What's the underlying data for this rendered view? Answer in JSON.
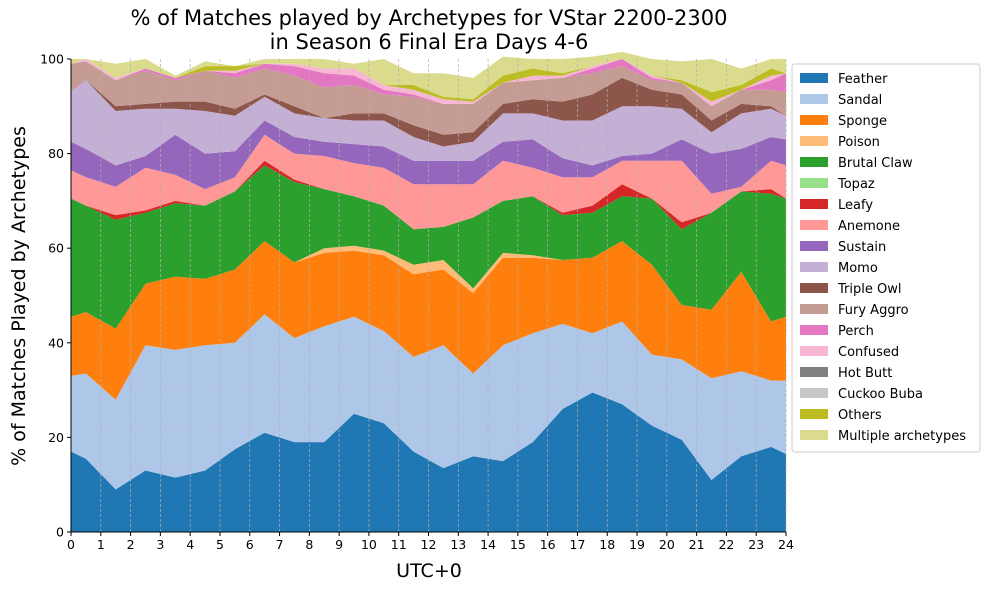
{
  "chart_data": {
    "type": "area",
    "stacked": true,
    "title": "% of Matches played by Archetypes for VStar 2200-2300\nin Season 6 Final Era Days 4-6",
    "xlabel": "UTC+0",
    "ylabel": "% of Matches Played by Archetypes",
    "xlim": [
      0,
      24
    ],
    "ylim": [
      0,
      100
    ],
    "x_ticks": [
      0,
      1,
      2,
      3,
      4,
      5,
      6,
      7,
      8,
      9,
      10,
      11,
      12,
      13,
      14,
      15,
      16,
      17,
      18,
      19,
      20,
      21,
      22,
      23,
      24
    ],
    "y_ticks": [
      0,
      20,
      40,
      60,
      80,
      100
    ],
    "grid": "vertical dashed",
    "legend_position": "outside right",
    "x": [
      0,
      0.5,
      1.5,
      2.5,
      3.5,
      4.5,
      5.5,
      6.5,
      7.5,
      8.5,
      9.5,
      10.5,
      11.5,
      12.5,
      13.5,
      14.5,
      15.5,
      16.5,
      17.5,
      18.5,
      19.5,
      20.5,
      21.5,
      22.5,
      23.5,
      24
    ],
    "series": [
      {
        "name": "Feather",
        "color": "#1f77b4",
        "values": [
          17,
          15.5,
          9,
          13,
          11.5,
          13,
          17.5,
          21,
          19,
          19,
          25,
          23,
          17,
          13.5,
          16,
          15,
          19,
          26,
          29.5,
          27,
          22.5,
          19.5,
          11,
          16,
          18,
          16.5
        ]
      },
      {
        "name": "Sandal",
        "color": "#aec7e8",
        "values": [
          16,
          18,
          19,
          26.5,
          27,
          26.5,
          22.5,
          25,
          22,
          24.5,
          20.5,
          19.5,
          20,
          26,
          17.5,
          24.5,
          23,
          18,
          12.5,
          17.5,
          15,
          17,
          21.5,
          18,
          14,
          15.5
        ]
      },
      {
        "name": "Sponge",
        "color": "#ff7f0e",
        "values": [
          12.5,
          13,
          15,
          13,
          15.5,
          14,
          15.5,
          15.5,
          16,
          15.5,
          14,
          16,
          17.5,
          16,
          17,
          18.5,
          16,
          13.5,
          16,
          17,
          19,
          11.5,
          14.5,
          21,
          12.5,
          13.5
        ]
      },
      {
        "name": "Poison",
        "color": "#ffbb78",
        "values": [
          0,
          0,
          0,
          0,
          0,
          0,
          0,
          0,
          0,
          1,
          1,
          1,
          2,
          2,
          1,
          1,
          0.5,
          0,
          0,
          0,
          0,
          0,
          0,
          0,
          0,
          0
        ]
      },
      {
        "name": "Brutal Claw",
        "color": "#2ca02c",
        "values": [
          25,
          22.5,
          23,
          15,
          15.5,
          15.5,
          16.5,
          16,
          17,
          12.5,
          10.5,
          9.5,
          7.5,
          7,
          15,
          11,
          12.5,
          9.5,
          9.5,
          9.5,
          14,
          16,
          20.5,
          17,
          27,
          25
        ]
      },
      {
        "name": "Topaz",
        "color": "#98df8a",
        "values": [
          0,
          0,
          0,
          0,
          0,
          0,
          0,
          0,
          0,
          0,
          0,
          0,
          0,
          0,
          0,
          0,
          0,
          0,
          0,
          0,
          0,
          0,
          0,
          0,
          0,
          0
        ]
      },
      {
        "name": "Leafy",
        "color": "#d62728",
        "values": [
          0,
          0,
          1,
          0.5,
          0.5,
          0,
          0,
          1,
          0.5,
          0,
          0,
          0,
          0,
          0,
          0,
          0,
          0,
          0.5,
          1.5,
          2.5,
          0,
          1.5,
          0,
          0,
          1,
          0
        ]
      },
      {
        "name": "Anemone",
        "color": "#ff9896",
        "values": [
          6,
          6,
          6,
          9,
          5.5,
          3.5,
          3,
          5.5,
          5.5,
          7,
          7,
          8,
          9.5,
          9,
          7,
          8.5,
          6,
          7.5,
          6,
          5,
          8,
          13,
          4,
          1,
          6,
          7
        ]
      },
      {
        "name": "Sustain",
        "color": "#9467bd",
        "values": [
          6,
          6,
          4.5,
          2.5,
          8.5,
          7.5,
          5.5,
          3,
          3.5,
          3,
          4,
          4.5,
          5,
          5,
          5,
          4,
          6,
          4,
          2.5,
          1,
          1.5,
          4.5,
          8.5,
          8,
          5,
          5.5
        ]
      },
      {
        "name": "Momo",
        "color": "#c5b0d5",
        "values": [
          10.5,
          14.5,
          11.5,
          10,
          5.5,
          9,
          7.5,
          5,
          5,
          5,
          5,
          5.5,
          5,
          3,
          4,
          6,
          5.5,
          8,
          9.5,
          10.5,
          10,
          6.5,
          4.5,
          7.5,
          6,
          5
        ]
      },
      {
        "name": "Triple Owl",
        "color": "#8c564b",
        "values": [
          0,
          0,
          1,
          1,
          1.5,
          2,
          1.5,
          0.5,
          1.5,
          0,
          1.5,
          1.5,
          2.5,
          2.5,
          2,
          2,
          3,
          4,
          5.5,
          6,
          3.5,
          3,
          2.5,
          2,
          0.5,
          0
        ]
      },
      {
        "name": "Fury Aggro",
        "color": "#c49c94",
        "values": [
          6,
          4,
          5.5,
          7,
          4.5,
          6.5,
          6.5,
          5.5,
          6.5,
          6.5,
          6,
          4,
          6,
          6.5,
          6,
          4.5,
          4,
          5,
          4.5,
          2.5,
          2,
          2.5,
          3,
          3,
          3.5,
          5
        ]
      },
      {
        "name": "Perch",
        "color": "#e377c2",
        "values": [
          0,
          0,
          0,
          0.5,
          0.5,
          0,
          1,
          1,
          2,
          3,
          2,
          1,
          0.5,
          0,
          0,
          0,
          0,
          0,
          1,
          1.5,
          0.5,
          0,
          0,
          0,
          2,
          4
        ]
      },
      {
        "name": "Confused",
        "color": "#f7b6d2",
        "values": [
          0,
          0.5,
          0.5,
          0,
          0,
          0,
          0.5,
          0,
          0.5,
          1,
          1.5,
          1,
          1,
          1,
          0.5,
          0,
          1,
          0.5,
          0.5,
          0,
          0.5,
          0,
          1,
          0,
          1,
          0
        ]
      },
      {
        "name": "Hot Butt",
        "color": "#7f7f7f",
        "values": [
          0,
          0,
          0,
          0,
          0,
          0,
          0,
          0,
          0,
          0,
          0,
          0,
          0,
          0,
          0,
          0,
          0,
          0,
          0,
          0,
          0,
          0,
          0,
          0,
          0,
          0
        ]
      },
      {
        "name": "Cuckoo Buba",
        "color": "#c7c7c7",
        "values": [
          0,
          0,
          0,
          0,
          0,
          0,
          0,
          0,
          0,
          0,
          0,
          0,
          0,
          0,
          0,
          0,
          0,
          0,
          0,
          0,
          0,
          0,
          0,
          0,
          0,
          0
        ]
      },
      {
        "name": "Others",
        "color": "#bcbd22",
        "values": [
          0,
          0,
          0,
          0,
          0,
          1,
          1,
          0,
          0,
          0,
          0,
          0,
          1,
          0.5,
          0.5,
          1.5,
          1.5,
          0.5,
          0,
          0,
          0,
          0.5,
          2,
          1,
          1.5,
          0
        ]
      },
      {
        "name": "Multiple archetypes",
        "color": "#dbdb8d",
        "values": [
          1,
          0,
          3,
          2,
          0.5,
          1,
          0,
          1,
          1,
          2,
          1,
          5.5,
          2.5,
          5,
          4.5,
          4,
          2,
          3,
          2,
          1.5,
          3.5,
          4,
          7,
          3.5,
          2,
          3
        ]
      }
    ]
  }
}
